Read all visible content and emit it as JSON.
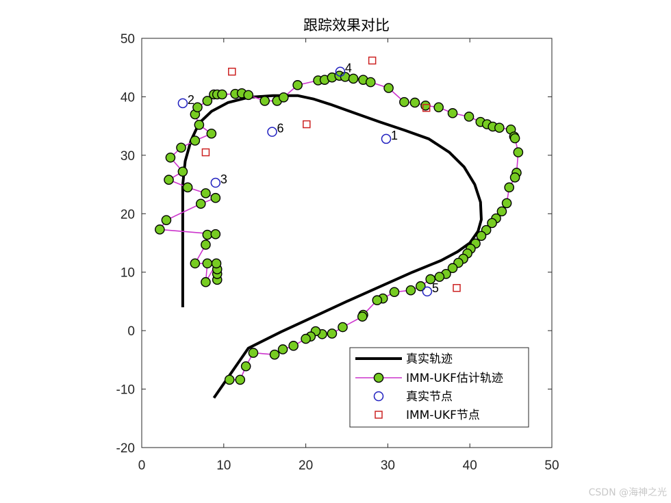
{
  "watermark": "CSDN @海神之光",
  "chart_data": {
    "type": "line",
    "title": "跟踪效果对比",
    "xlim": [
      0,
      50
    ],
    "ylim": [
      -20,
      50
    ],
    "xticks": [
      0,
      10,
      20,
      30,
      40,
      50
    ],
    "yticks": [
      -20,
      -10,
      0,
      10,
      20,
      30,
      40,
      50
    ],
    "grid": false,
    "legend_position": "bottom-right",
    "colors": {
      "true": "#000000",
      "estimate_line": "#cc33cc",
      "estimate_marker": "#77cc22",
      "true_node": "#1f1fbf",
      "imm_node": "#cc2222"
    },
    "series": [
      {
        "name": "真实轨迹",
        "style": "thick-line",
        "x": [
          5,
          5,
          5.0,
          5.3,
          6.0,
          7.0,
          8.5,
          10.5,
          13.0,
          16.0,
          19.0,
          21.0,
          23,
          26,
          29,
          32,
          35,
          37.5,
          39.3,
          40.6,
          41.3,
          41.4,
          41.0,
          40.0,
          38.5,
          36.5,
          33.0,
          29.0,
          25.0,
          21.0,
          17.0,
          13.0,
          8.8
        ],
        "y": [
          4,
          15,
          25,
          29,
          32.5,
          35.5,
          37.5,
          39.0,
          39.9,
          40.2,
          40.2,
          39.6,
          38.7,
          37.2,
          35.7,
          34.3,
          32.8,
          30.5,
          28.0,
          25.0,
          22.0,
          19.0,
          17.0,
          15.0,
          13.5,
          12.0,
          10.0,
          7.5,
          5.0,
          2.4,
          -0.2,
          -3.0,
          -11.5
        ]
      },
      {
        "name": "IMM-UKF估计轨迹",
        "style": "line-with-markers",
        "x": [
          9.2,
          9.2,
          9.2,
          9.1,
          7.8,
          8.0,
          6.5,
          7.8,
          8.0,
          9.0,
          2.2,
          3.0,
          7.2,
          9.0,
          7.8,
          5.6,
          3.3,
          5.0,
          3.5,
          4.8,
          6.5,
          8.5,
          7.0,
          6.5,
          6.8,
          8.0,
          8.8,
          9.2,
          9.8,
          11.4,
          12.2,
          13.0,
          15.0,
          16.5,
          17.3,
          19.0,
          21.5,
          22.3,
          23.2,
          24.1,
          24.8,
          25.8,
          27.0,
          27.9,
          30.1,
          32.0,
          33.3,
          34.6,
          36.2,
          37.9,
          39.9,
          41.3,
          42.1,
          42.8,
          43.6,
          45.0,
          45.4,
          45.5,
          45.9,
          45.7,
          45.5,
          44.8,
          44.5,
          43.9,
          43.2,
          42.7,
          42.0,
          41.4,
          40.7,
          40.1,
          39.7,
          39.2,
          38.6,
          37.9,
          37.1,
          36.3,
          35.2,
          34.0,
          32.8,
          30.8,
          29.4,
          28.7,
          27.0,
          26.9,
          24.5,
          23.2,
          22.0,
          21.2,
          20.6,
          20.0,
          18.5,
          17.2,
          16.2,
          13.6,
          12.7,
          12.0,
          10.7
        ],
        "y": [
          8.7,
          9.7,
          10.5,
          11.5,
          8.3,
          11.5,
          11.5,
          14.7,
          16.4,
          16.5,
          17.3,
          18.9,
          21.7,
          22.7,
          23.5,
          24.5,
          25.8,
          27.2,
          29.6,
          31.3,
          32.5,
          33.7,
          35.2,
          37.0,
          38.2,
          39.3,
          40.4,
          40.4,
          40.4,
          40.5,
          40.6,
          40.3,
          39.3,
          39.3,
          39.9,
          42.0,
          42.8,
          42.9,
          43.3,
          43.6,
          43.4,
          43.1,
          42.9,
          42.5,
          41.5,
          39.1,
          39.0,
          38.5,
          38.2,
          37.2,
          36.6,
          35.7,
          35.3,
          34.9,
          34.7,
          34.4,
          33.2,
          32.9,
          30.5,
          27.0,
          26.2,
          24.5,
          21.8,
          20.4,
          19.2,
          18.4,
          17.2,
          16.2,
          14.9,
          14.0,
          13.2,
          12.3,
          11.6,
          10.7,
          9.7,
          9.2,
          8.8,
          7.6,
          6.9,
          6.6,
          5.5,
          5.2,
          2.7,
          2.4,
          0.6,
          -0.5,
          -0.6,
          -0.1,
          -1.0,
          -1.4,
          -2.6,
          -3.2,
          -4.1,
          -3.8,
          -6.1,
          -8.4,
          -8.4
        ]
      },
      {
        "name": "真实节点",
        "style": "open-circle",
        "x": [
          29.8,
          5.0,
          9.0,
          24.2,
          34.8,
          15.9
        ],
        "y": [
          32.8,
          38.9,
          25.3,
          44.3,
          6.7,
          34.0
        ],
        "labels": [
          "1",
          "2",
          "3",
          "4",
          "5",
          "6"
        ]
      },
      {
        "name": "IMM-UKF节点",
        "style": "open-square",
        "x": [
          11.0,
          7.8,
          20.1,
          28.1,
          34.7,
          38.4
        ],
        "y": [
          44.3,
          30.5,
          35.3,
          46.2,
          38.1,
          7.3
        ]
      }
    ]
  }
}
